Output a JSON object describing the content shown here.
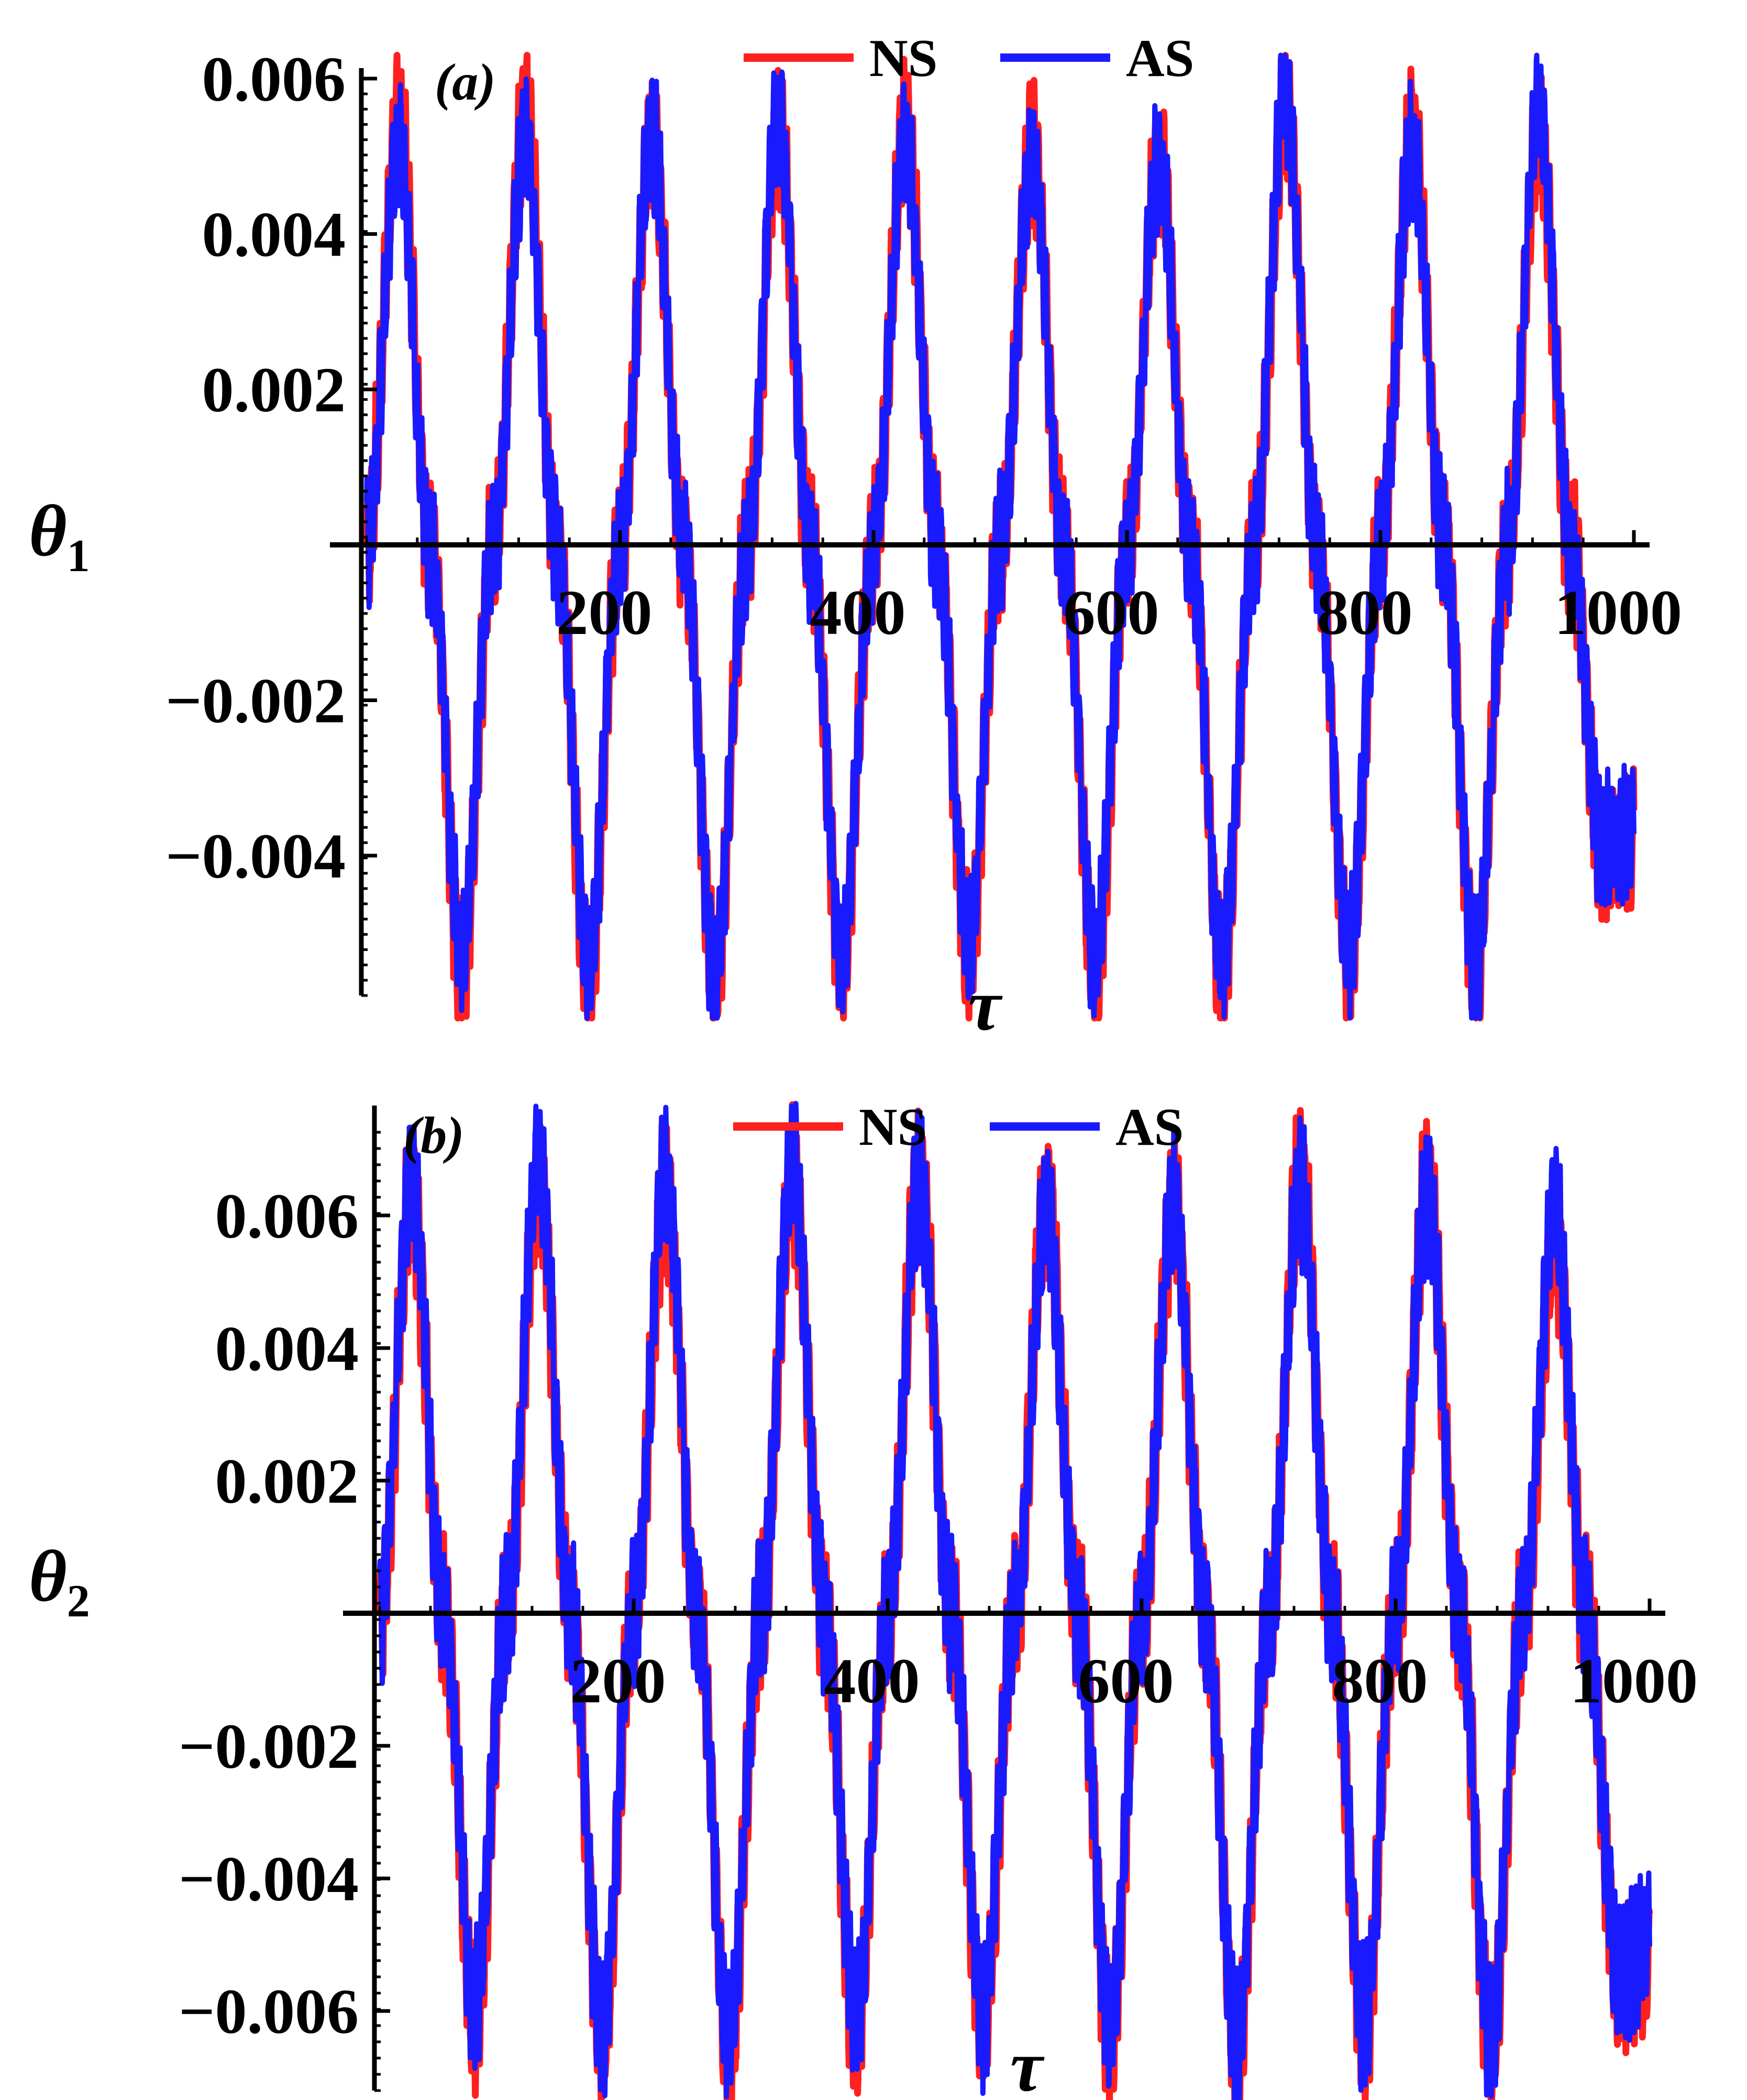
{
  "chart_data": [
    {
      "type": "line",
      "panel_label": "(a)",
      "ylabel": "θ",
      "ylabel_sub": "1",
      "xlabel": "τ",
      "xlim": [
        0,
        1000
      ],
      "ylim": [
        -0.0058,
        0.006
      ],
      "x_ticks": [
        "200",
        "400",
        "600",
        "800",
        "1000"
      ],
      "x_tick_values": [
        200,
        400,
        600,
        800,
        1000
      ],
      "y_ticks": [
        "0.006",
        "0.004",
        "0.002",
        "−0.002",
        "−0.004"
      ],
      "y_tick_values": [
        0.006,
        0.004,
        0.002,
        -0.002,
        -0.004
      ],
      "legend": {
        "position": "top-center"
      },
      "series": [
        {
          "name": "NS",
          "color": "#ff2020",
          "x": [
            0,
            25,
            50,
            75,
            100,
            125,
            150,
            175,
            200,
            225,
            250,
            275,
            300,
            325,
            350,
            375,
            400,
            425,
            450,
            475,
            500,
            525,
            550,
            575,
            600,
            625,
            650,
            675,
            700,
            725,
            750,
            775,
            800,
            825,
            850,
            875,
            900,
            925,
            950,
            975,
            1000
          ],
          "y": [
            0.0,
            0.0055,
            0.0,
            -0.0055,
            0.0,
            0.0055,
            0.0,
            -0.0056,
            0.0,
            0.0052,
            0.0,
            -0.0056,
            0.0,
            0.0053,
            0.0,
            -0.0054,
            0.0,
            0.0054,
            0.0,
            -0.0052,
            0.0,
            0.0051,
            0.0,
            -0.0056,
            0.0,
            0.005,
            0.0,
            -0.0055,
            0.0,
            0.0056,
            0.0,
            -0.0054,
            0.0,
            0.0053,
            0.0,
            -0.0055,
            0.0,
            0.0052,
            0.0,
            -0.004,
            -0.0038
          ]
        },
        {
          "name": "AS",
          "color": "#1a1aff",
          "x": [
            0,
            25,
            50,
            75,
            100,
            125,
            150,
            175,
            200,
            225,
            250,
            275,
            300,
            325,
            350,
            375,
            400,
            425,
            450,
            475,
            500,
            525,
            550,
            575,
            600,
            625,
            650,
            675,
            700,
            725,
            750,
            775,
            800,
            825,
            850,
            875,
            900,
            925,
            950,
            975,
            1000
          ],
          "y": [
            0.0,
            0.0051,
            0.0,
            -0.0052,
            0.0,
            0.0052,
            0.0,
            -0.0054,
            0.0,
            0.0053,
            0.0,
            -0.0055,
            0.0,
            0.0055,
            0.0,
            -0.0053,
            0.0,
            0.0052,
            0.0,
            -0.0051,
            0.0,
            0.005,
            0.0,
            -0.0053,
            0.0,
            0.0049,
            0.0,
            -0.0053,
            0.0,
            0.0058,
            0.0,
            -0.0052,
            0.0,
            0.0051,
            0.0,
            -0.0054,
            0.0,
            0.0056,
            0.0,
            -0.0039,
            -0.0037
          ]
        }
      ]
    },
    {
      "type": "line",
      "panel_label": "(b)",
      "ylabel": "θ",
      "ylabel_sub": "2",
      "xlabel": "τ",
      "xlim": [
        0,
        1000
      ],
      "ylim": [
        -0.0072,
        0.0075
      ],
      "x_ticks": [
        "200",
        "400",
        "600",
        "800",
        "1000"
      ],
      "x_tick_values": [
        200,
        400,
        600,
        800,
        1000
      ],
      "y_ticks": [
        "0.006",
        "0.004",
        "0.002",
        "−0.002",
        "−0.004",
        "−0.006"
      ],
      "y_tick_values": [
        0.006,
        0.004,
        0.002,
        -0.002,
        -0.004,
        -0.006
      ],
      "legend": {
        "position": "top-center"
      },
      "series": [
        {
          "name": "NS",
          "color": "#ff2020",
          "x": [
            0,
            25,
            50,
            75,
            100,
            125,
            150,
            175,
            200,
            225,
            250,
            275,
            300,
            325,
            350,
            375,
            400,
            425,
            450,
            475,
            500,
            525,
            550,
            575,
            600,
            625,
            650,
            675,
            700,
            725,
            750,
            775,
            800,
            825,
            850,
            875,
            900,
            925,
            950,
            975,
            1000
          ],
          "y": [
            0.0,
            0.0062,
            0.0,
            -0.0062,
            0.0,
            0.0064,
            0.0,
            -0.0065,
            0.0,
            0.0063,
            0.0,
            -0.0067,
            0.0,
            0.0065,
            0.0,
            -0.0064,
            0.0,
            0.0066,
            0.0,
            -0.0063,
            0.0,
            0.0062,
            0.0,
            -0.0064,
            0.0,
            0.0061,
            0.0,
            -0.0067,
            0.0,
            0.0066,
            0.0,
            -0.0064,
            0.0,
            0.0064,
            0.0,
            -0.0066,
            0.0,
            0.0055,
            0.0,
            -0.0055,
            -0.0053
          ]
        },
        {
          "name": "AS",
          "color": "#1a1aff",
          "x": [
            0,
            25,
            50,
            75,
            100,
            125,
            150,
            175,
            200,
            225,
            250,
            275,
            300,
            325,
            350,
            375,
            400,
            425,
            450,
            475,
            500,
            525,
            550,
            575,
            600,
            625,
            650,
            675,
            700,
            725,
            750,
            775,
            800,
            825,
            850,
            875,
            900,
            925,
            950,
            975,
            1000
          ],
          "y": [
            0.0,
            0.0065,
            0.0,
            -0.0059,
            0.0,
            0.0069,
            0.0,
            -0.0062,
            0.0,
            0.0066,
            0.0,
            -0.0064,
            0.0,
            0.0067,
            0.0,
            -0.0061,
            0.0,
            0.0065,
            0.0,
            -0.006,
            0.0,
            0.006,
            0.0,
            -0.0062,
            0.0,
            0.0062,
            0.0,
            -0.0065,
            0.0,
            0.0064,
            0.0,
            -0.0062,
            0.0,
            0.0063,
            0.0,
            -0.0064,
            0.0,
            0.006,
            0.0,
            -0.0053,
            -0.005
          ]
        }
      ]
    }
  ]
}
